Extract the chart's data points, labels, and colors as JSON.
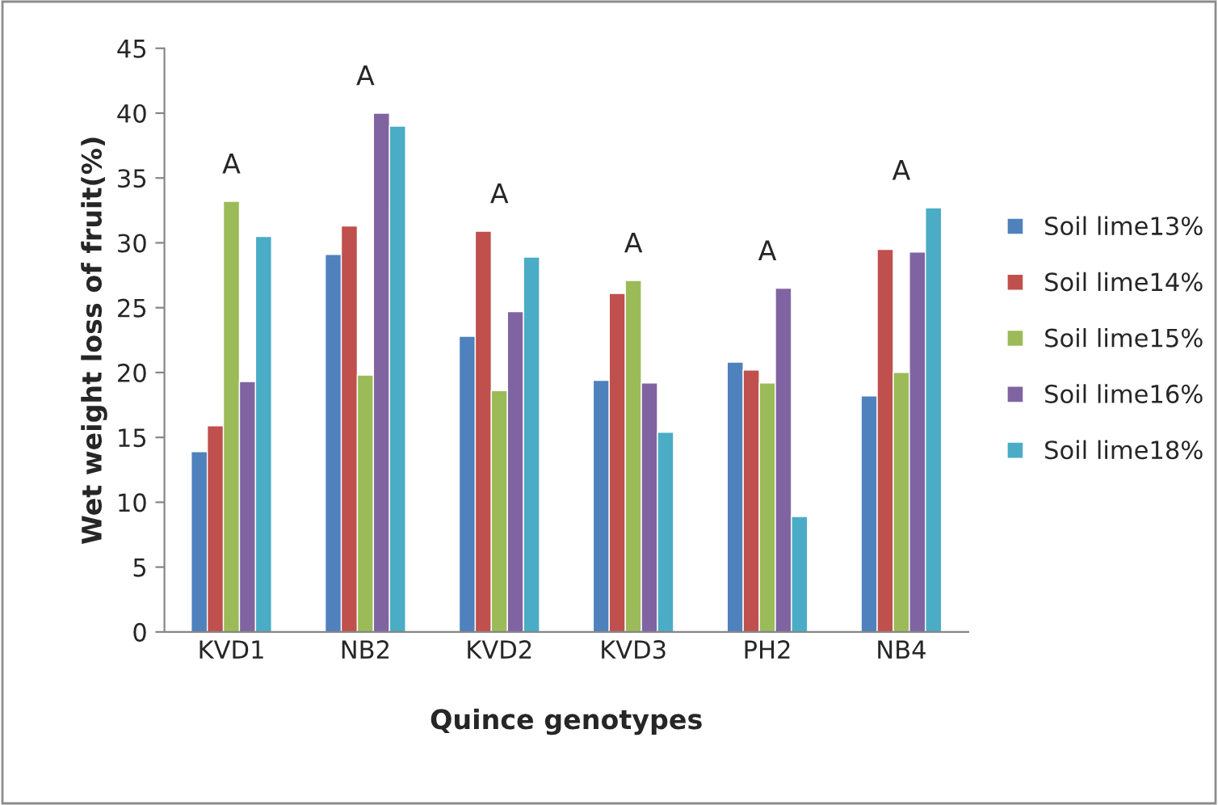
{
  "chart_data": {
    "type": "bar",
    "xlabel": "Quince genotypes",
    "ylabel": "Wet weight loss of fruit(%)",
    "categories": [
      "KVD1",
      "NB2",
      "KVD2",
      "KVD3",
      "PH2",
      "NB4"
    ],
    "series": [
      {
        "name": "Soil lime13%",
        "color": "#4f81bd",
        "values": [
          13.9,
          29.1,
          22.8,
          19.4,
          20.8,
          18.2
        ]
      },
      {
        "name": "Soil lime14%",
        "color": "#c0504d",
        "values": [
          15.9,
          31.3,
          30.9,
          26.1,
          20.2,
          29.5
        ]
      },
      {
        "name": "Soil lime15%",
        "color": "#9bbb59",
        "values": [
          33.2,
          19.8,
          18.6,
          27.1,
          19.2,
          20.0
        ]
      },
      {
        "name": "Soil lime16%",
        "color": "#8064a2",
        "values": [
          19.3,
          40.0,
          24.7,
          19.2,
          26.5,
          29.3
        ]
      },
      {
        "name": "Soil lime18%",
        "color": "#4bacc6",
        "values": [
          30.5,
          39.0,
          28.9,
          15.4,
          8.9,
          32.7
        ]
      }
    ],
    "annotations": [
      "A",
      "A",
      "A",
      "A",
      "A",
      "A"
    ],
    "ylim": [
      0,
      45
    ],
    "yticks": [
      0,
      5,
      10,
      15,
      20,
      25,
      30,
      35,
      40,
      45
    ],
    "grid": false,
    "legend": "right"
  }
}
